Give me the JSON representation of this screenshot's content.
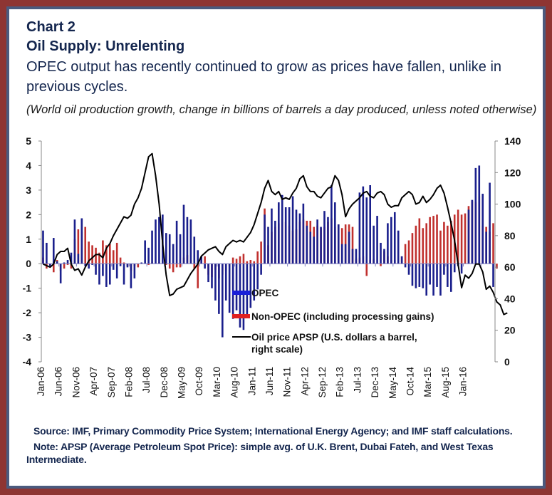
{
  "header": {
    "chart_label": "Chart 2",
    "title": "Oil Supply: Unrelenting",
    "subtitle": "OPEC output has recently continued to grow as prices have fallen, unlike in previous cycles.",
    "units_note": "(World oil production growth, change in billions of barrels a day produced, unless noted otherwise)"
  },
  "footer": {
    "source": "Source: IMF, Primary Commodity Price System; International Energy Agency; and IMF staff calculations.",
    "note": "Note: APSP (Average Petroleum Spot Price): simple avg. of U.K. Brent, Dubai Fateh, and West Texas Intermediate."
  },
  "colors": {
    "opec": "#1a1f8c",
    "non_opec": "#c0302e",
    "price": "#000000",
    "frame_outer": "#8e3533",
    "frame_inner": "#4b5a7e",
    "title_text": "#14264e"
  },
  "chart_data": {
    "type": "bar",
    "title": "Oil Supply: Unrelenting",
    "xlabel": "",
    "ylabel": "Change in billions of barrels a day",
    "y2label": "U.S. dollars a barrel",
    "ylim": [
      -4,
      5
    ],
    "y2lim": [
      0,
      140
    ],
    "yticks": [
      "5",
      "4",
      "3",
      "2",
      "1",
      "0",
      "-1",
      "-2",
      "-3",
      "-4"
    ],
    "y2ticks": [
      "140",
      "120",
      "100",
      "80",
      "60",
      "40",
      "20",
      "0"
    ],
    "grid": false,
    "legend_position": "lower-center",
    "start_month": "Jan-06",
    "x_tick_labels": [
      "Jan-06",
      "Jun-06",
      "Nov-06",
      "Apr-07",
      "Sep-07",
      "Feb-08",
      "Jul-08",
      "Dec-08",
      "May-09",
      "Oct-09",
      "Mar-10",
      "Aug-10",
      "Jan-11",
      "Jun-11",
      "Nov-11",
      "Apr-12",
      "Sep-12",
      "Feb-13",
      "Jul-13",
      "Dec-13",
      "May-14",
      "Oct-14",
      "Mar-15",
      "Aug-15",
      "Jan-16"
    ],
    "series": [
      {
        "name": "OPEC",
        "kind": "bar",
        "axis": "left",
        "values": [
          1.35,
          0.85,
          -0.1,
          1.05,
          0.1,
          -0.8,
          0.05,
          0.15,
          0.45,
          1.8,
          0.4,
          1.85,
          -0.1,
          -0.2,
          -0.05,
          -0.45,
          -0.85,
          -0.5,
          -0.95,
          -0.85,
          -0.25,
          -0.6,
          -0.1,
          -0.85,
          -0.15,
          -1.0,
          -0.6,
          0.0,
          0.05,
          0.95,
          0.65,
          1.35,
          1.8,
          1.9,
          2.0,
          1.25,
          1.2,
          0.8,
          1.75,
          1.2,
          2.4,
          1.9,
          1.8,
          1.1,
          0.55,
          0.3,
          -0.2,
          -0.75,
          -1.0,
          -1.5,
          -2.05,
          -3.0,
          -1.5,
          -2.0,
          -2.25,
          -1.9,
          -2.6,
          -2.7,
          -2.2,
          -1.8,
          -1.5,
          -1.05,
          -0.45,
          2.0,
          1.5,
          2.25,
          1.75,
          2.5,
          2.8,
          2.3,
          2.3,
          2.75,
          2.2,
          2.05,
          2.45,
          1.55,
          1.3,
          1.1,
          1.8,
          1.5,
          2.15,
          1.9,
          3.2,
          2.5,
          1.6,
          0.8,
          0.8,
          1.3,
          0.6,
          0.6,
          2.9,
          3.15,
          2.7,
          3.2,
          1.55,
          1.95,
          0.85,
          0.6,
          1.65,
          1.9,
          2.1,
          1.35,
          0.3,
          -0.15,
          -0.45,
          -0.9,
          -1.0,
          -0.95,
          -1.0,
          -1.3,
          -0.85,
          -1.3,
          -0.95,
          -1.3,
          -0.45,
          -0.95,
          -1.15,
          -0.35,
          -0.1,
          -0.4,
          0.0,
          2.2,
          2.6,
          3.9,
          4.0,
          2.85,
          1.3,
          3.3,
          -0.95
        ],
        "color": "#1a1f8c"
      },
      {
        "name": "Non-OPEC (including processing gains)",
        "kind": "bar",
        "axis": "left",
        "values": [
          0.25,
          -0.2,
          -0.05,
          -0.35,
          0.15,
          -0.3,
          -0.2,
          -0.05,
          -0.2,
          1.0,
          1.4,
          1.3,
          1.5,
          0.9,
          0.75,
          0.65,
          0.45,
          0.95,
          0.75,
          0.8,
          0.55,
          0.85,
          0.25,
          0.05,
          -0.1,
          -0.3,
          -0.1,
          -0.15,
          0.0,
          0.0,
          -0.05,
          0.05,
          0.0,
          0.05,
          0.0,
          -0.05,
          -0.2,
          -0.35,
          -0.15,
          -0.15,
          0.25,
          0.35,
          0.15,
          -0.2,
          -1.0,
          0.25,
          0.3,
          -0.45,
          -0.55,
          -0.25,
          -0.6,
          -0.45,
          -0.3,
          -0.1,
          0.25,
          0.2,
          0.3,
          0.4,
          0.1,
          0.15,
          0.1,
          0.5,
          0.9,
          2.25,
          0.75,
          1.3,
          1.5,
          1.65,
          1.8,
          1.7,
          1.55,
          1.35,
          1.4,
          1.7,
          1.8,
          1.75,
          1.75,
          1.5,
          1.55,
          1.45,
          1.5,
          1.7,
          1.85,
          1.5,
          1.6,
          1.45,
          1.6,
          1.6,
          1.5,
          0.2,
          0.25,
          0.3,
          -0.5,
          0.15,
          0.2,
          0.0,
          -0.1,
          0.5,
          0.3,
          0.15,
          0.15,
          0.05,
          0.3,
          0.8,
          0.95,
          1.25,
          1.55,
          1.85,
          1.45,
          1.65,
          1.9,
          1.95,
          2.0,
          1.35,
          1.7,
          1.55,
          1.75,
          2.0,
          2.2,
          2.0,
          2.05,
          2.35,
          2.55,
          2.5,
          2.75,
          1.55,
          1.5,
          1.3,
          1.65,
          -0.2
        ],
        "color": "#c0302e"
      },
      {
        "name": "Oil price APSP (U.S. dollars a barrel, right scale)",
        "kind": "line",
        "axis": "right",
        "values": [
          62,
          61,
          60,
          62,
          68,
          70,
          70,
          72,
          62,
          58,
          59,
          55,
          60,
          64,
          66,
          68,
          68,
          66,
          72,
          75,
          80,
          84,
          88,
          92,
          91,
          93,
          100,
          104,
          110,
          120,
          130,
          132,
          118,
          100,
          75,
          55,
          42,
          43,
          46,
          47,
          48,
          52,
          56,
          59,
          62,
          67,
          69,
          71,
          72,
          73,
          70,
          68,
          73,
          75,
          77,
          76,
          77,
          76,
          79,
          82,
          87,
          94,
          101,
          110,
          115,
          108,
          106,
          108,
          103,
          104,
          103,
          107,
          110,
          116,
          118,
          111,
          108,
          108,
          105,
          104,
          107,
          110,
          111,
          118,
          115,
          106,
          92,
          97,
          100,
          102,
          104,
          107,
          108,
          105,
          104,
          107,
          108,
          106,
          100,
          98,
          99,
          99,
          104,
          106,
          108,
          106,
          100,
          101,
          105,
          101,
          103,
          106,
          110,
          112,
          107,
          98,
          88,
          77,
          62,
          47,
          55,
          53,
          56,
          62,
          62,
          57,
          46,
          48,
          44,
          38,
          36,
          30,
          31
        ],
        "color": "#000000"
      }
    ]
  }
}
